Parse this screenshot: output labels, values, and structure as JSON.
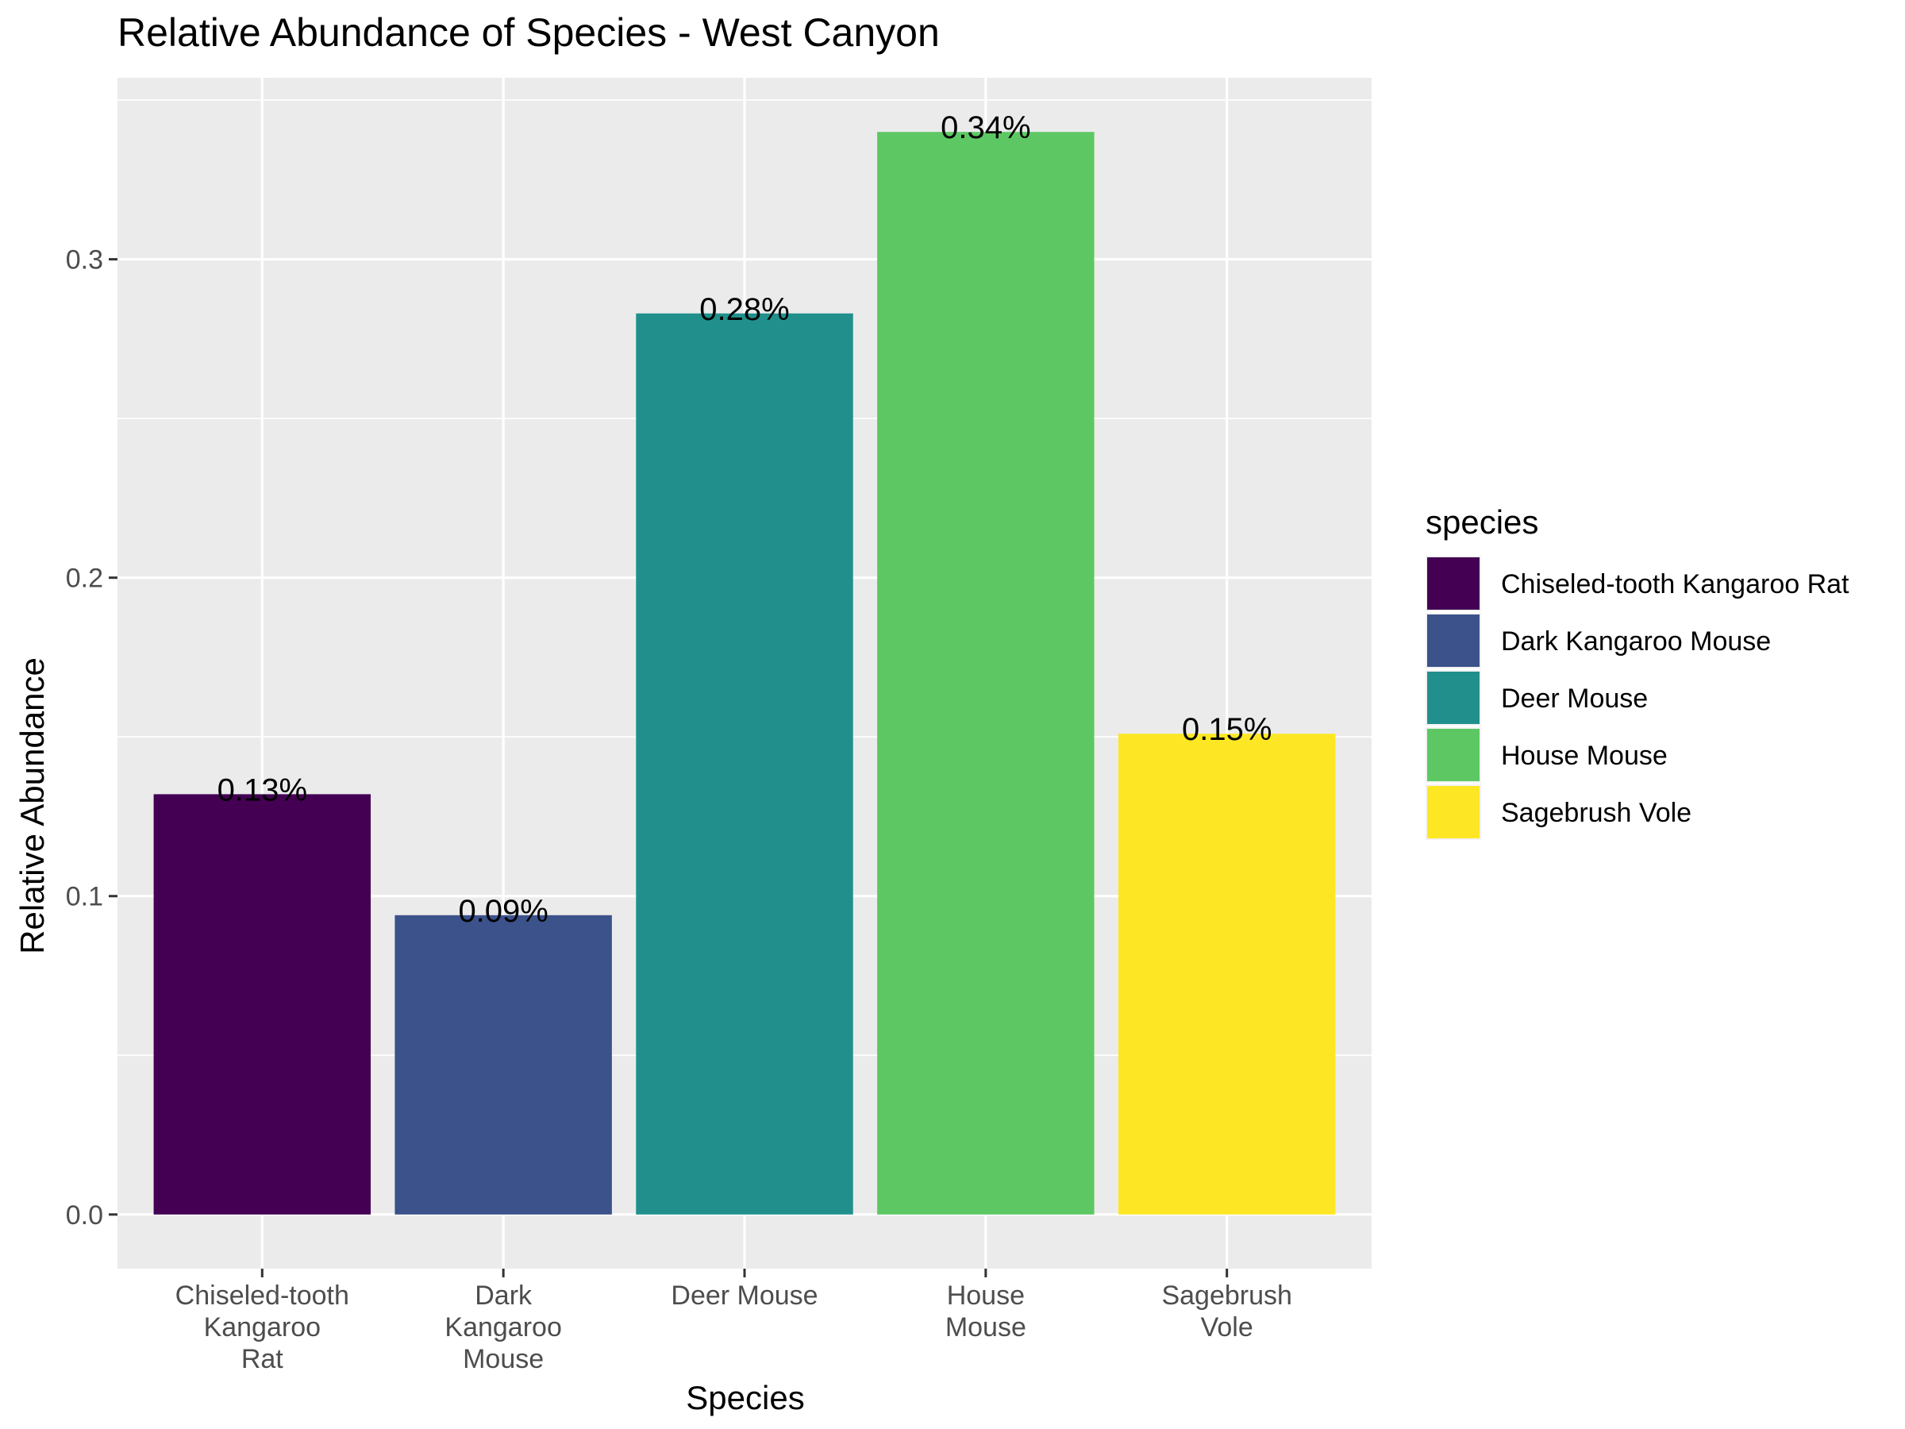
{
  "chart_data": {
    "type": "bar",
    "title": "Relative Abundance of Species - West Canyon",
    "xlabel": "Species",
    "ylabel": "Relative Abundance",
    "categories": [
      [
        "Chiseled-tooth",
        "Kangaroo",
        "Rat"
      ],
      [
        "Dark",
        "Kangaroo",
        "Mouse"
      ],
      [
        "Deer Mouse"
      ],
      [
        "House",
        "Mouse"
      ],
      [
        "Sagebrush",
        "Vole"
      ]
    ],
    "values": [
      0.132,
      0.094,
      0.283,
      0.34,
      0.151
    ],
    "data_labels": [
      "0.13%",
      "0.09%",
      "0.28%",
      "0.34%",
      "0.15%"
    ],
    "colors": [
      "#440154",
      "#3B528B",
      "#21908C",
      "#5DC863",
      "#FDE725"
    ],
    "ylim": [
      -0.017,
      0.357
    ],
    "yticks": [
      0.0,
      0.1,
      0.2,
      0.3
    ],
    "ytick_labels": [
      "0.0",
      "0.1",
      "0.2",
      "0.3"
    ],
    "grid": true,
    "panel_background": "#EBEBEB",
    "legend": {
      "title": "species",
      "position": "right",
      "entries": [
        "Chiseled-tooth Kangaroo Rat",
        "Dark Kangaroo Mouse",
        "Deer Mouse",
        "House Mouse",
        "Sagebrush Vole"
      ]
    }
  }
}
